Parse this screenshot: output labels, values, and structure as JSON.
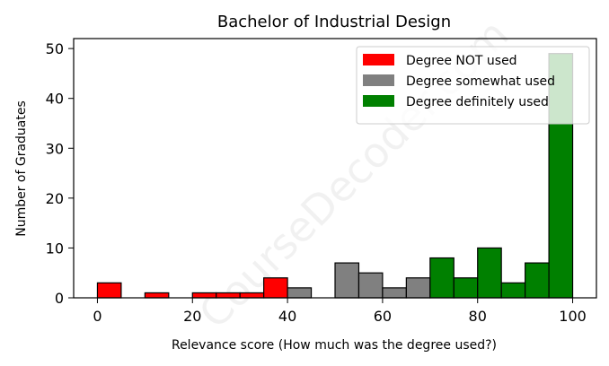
{
  "chart_data": {
    "type": "bar",
    "title": "Bachelor of Industrial Design",
    "xlabel": "Relevance score (How much was the degree used?)",
    "ylabel": "Number of Graduates",
    "xlim": [
      -5,
      105
    ],
    "ylim": [
      0,
      52
    ],
    "xticks": [
      0,
      20,
      40,
      60,
      80,
      100
    ],
    "yticks": [
      0,
      10,
      20,
      30,
      40,
      50
    ],
    "bin_width": 5,
    "grid": false,
    "legend_position": "upper right",
    "series": [
      {
        "name": "Degree NOT used",
        "color": "#ff0000",
        "bins": [
          {
            "x0": 0,
            "value": 3
          },
          {
            "x0": 5,
            "value": 0
          },
          {
            "x0": 10,
            "value": 1
          },
          {
            "x0": 15,
            "value": 0
          },
          {
            "x0": 20,
            "value": 1
          },
          {
            "x0": 25,
            "value": 1
          },
          {
            "x0": 30,
            "value": 1
          },
          {
            "x0": 35,
            "value": 4
          }
        ]
      },
      {
        "name": "Degree somewhat used",
        "color": "#808080",
        "bins": [
          {
            "x0": 40,
            "value": 2
          },
          {
            "x0": 45,
            "value": 0
          },
          {
            "x0": 50,
            "value": 7
          },
          {
            "x0": 55,
            "value": 5
          },
          {
            "x0": 60,
            "value": 2
          },
          {
            "x0": 65,
            "value": 4
          }
        ]
      },
      {
        "name": "Degree definitely used",
        "color": "#008000",
        "bins": [
          {
            "x0": 70,
            "value": 8
          },
          {
            "x0": 75,
            "value": 4
          },
          {
            "x0": 80,
            "value": 10
          },
          {
            "x0": 85,
            "value": 3
          },
          {
            "x0": 90,
            "value": 7
          },
          {
            "x0": 95,
            "value": 49
          }
        ]
      }
    ]
  },
  "watermark": "CourseDecoder.com"
}
